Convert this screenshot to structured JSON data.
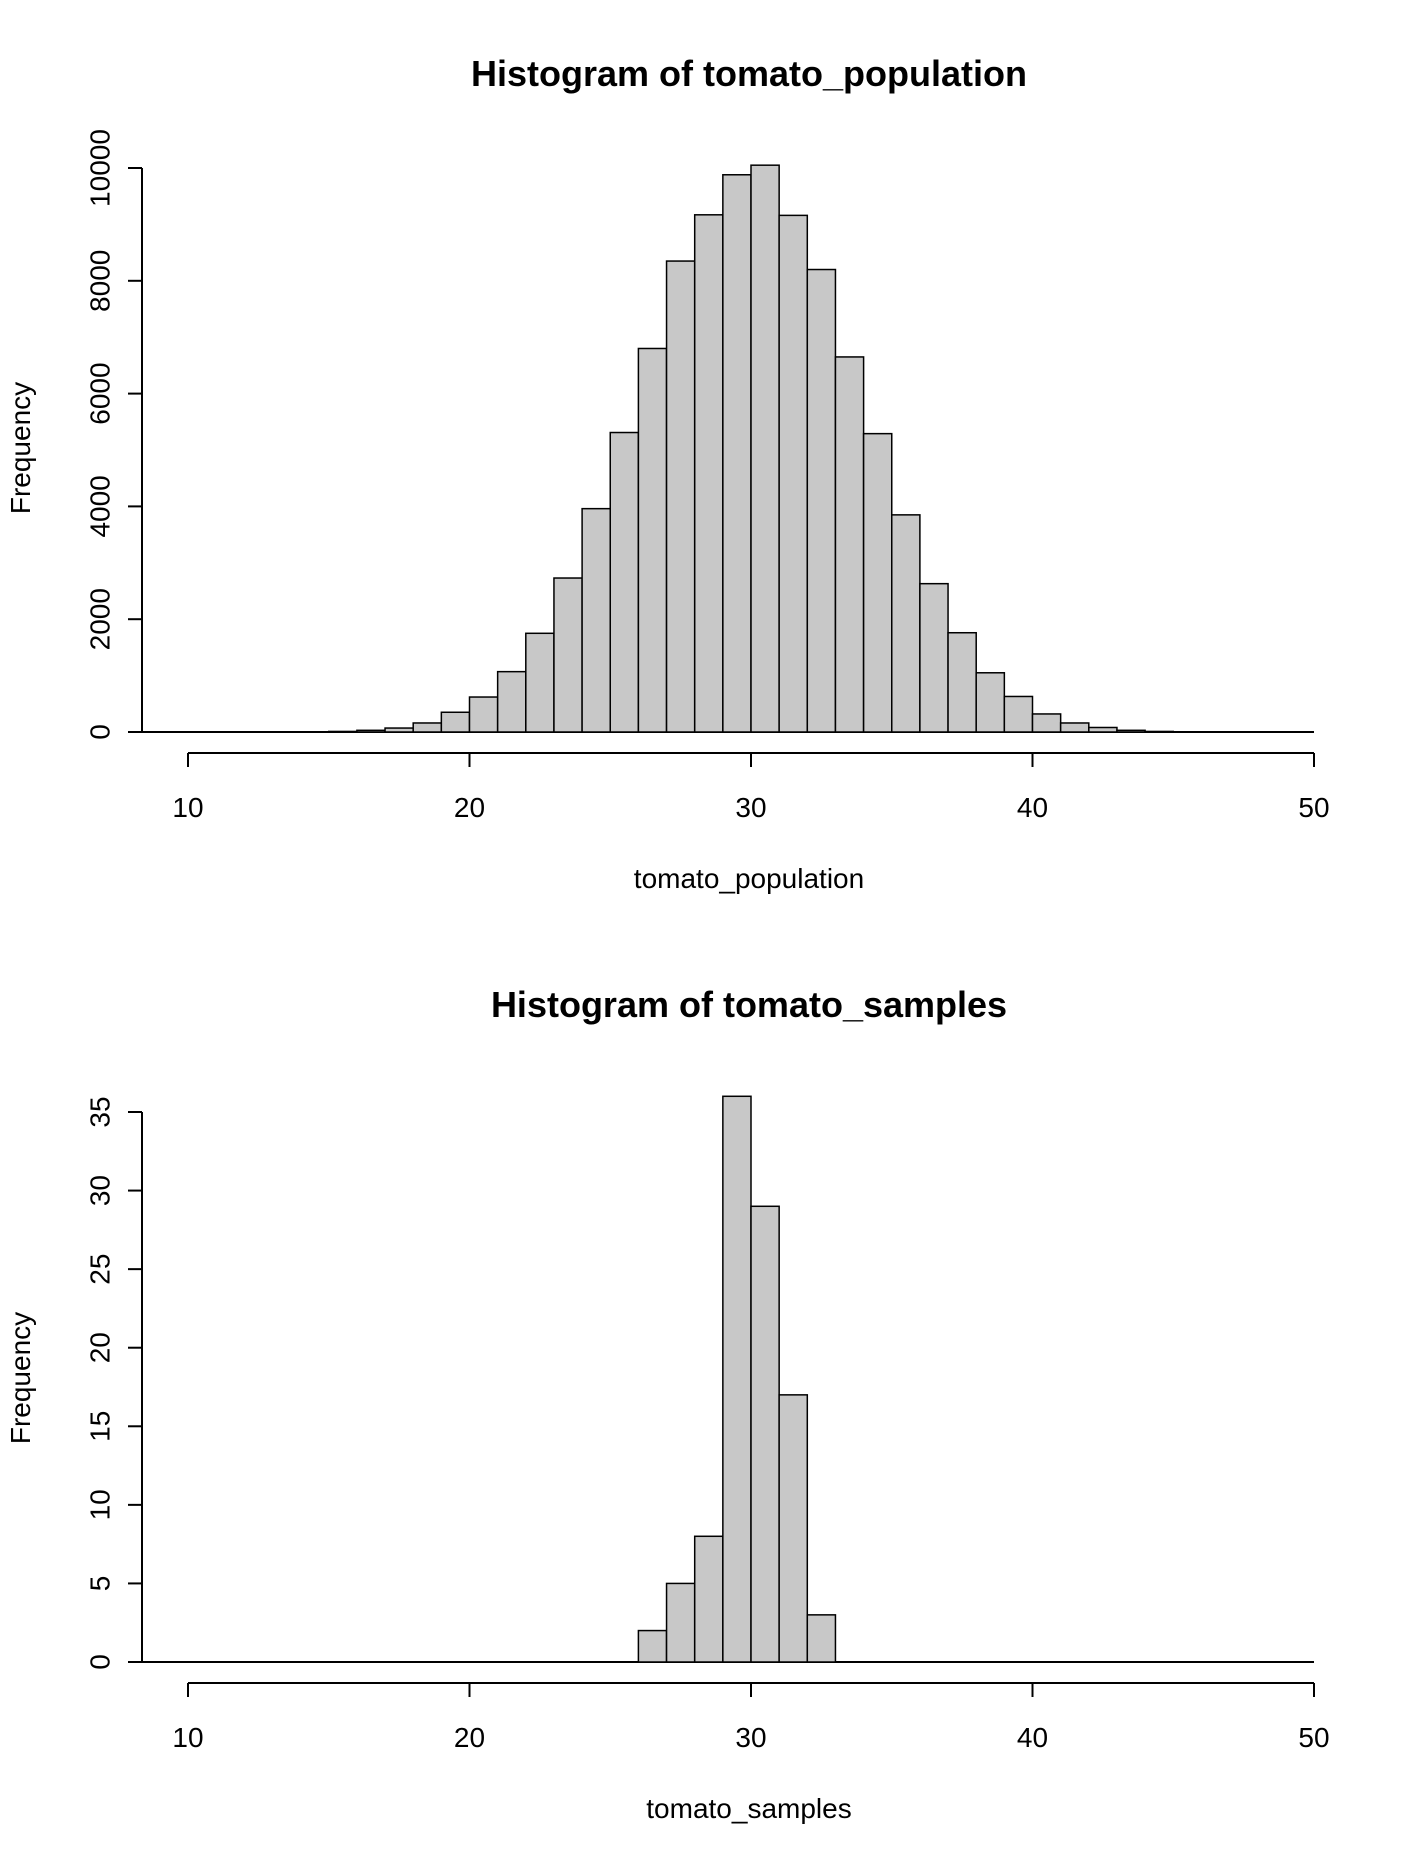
{
  "chart_data": [
    {
      "type": "bar",
      "title": "Histogram of tomato_population",
      "xlabel": "tomato_population",
      "ylabel": "Frequency",
      "xlim": [
        10,
        50
      ],
      "ylim": [
        0,
        10000
      ],
      "x_ticks": [
        10,
        20,
        30,
        40,
        50
      ],
      "y_ticks": [
        0,
        2000,
        4000,
        6000,
        8000,
        10000
      ],
      "bin_width": 1,
      "bins": [
        {
          "start": 15,
          "value": 10
        },
        {
          "start": 16,
          "value": 30
        },
        {
          "start": 17,
          "value": 70
        },
        {
          "start": 18,
          "value": 160
        },
        {
          "start": 19,
          "value": 350
        },
        {
          "start": 20,
          "value": 620
        },
        {
          "start": 21,
          "value": 1070
        },
        {
          "start": 22,
          "value": 1750
        },
        {
          "start": 23,
          "value": 2730
        },
        {
          "start": 24,
          "value": 3960
        },
        {
          "start": 25,
          "value": 5310
        },
        {
          "start": 26,
          "value": 6800
        },
        {
          "start": 27,
          "value": 8350
        },
        {
          "start": 28,
          "value": 9170
        },
        {
          "start": 29,
          "value": 9880
        },
        {
          "start": 30,
          "value": 10050
        },
        {
          "start": 31,
          "value": 9160
        },
        {
          "start": 32,
          "value": 8200
        },
        {
          "start": 33,
          "value": 6650
        },
        {
          "start": 34,
          "value": 5290
        },
        {
          "start": 35,
          "value": 3850
        },
        {
          "start": 36,
          "value": 2630
        },
        {
          "start": 37,
          "value": 1760
        },
        {
          "start": 38,
          "value": 1050
        },
        {
          "start": 39,
          "value": 630
        },
        {
          "start": 40,
          "value": 320
        },
        {
          "start": 41,
          "value": 160
        },
        {
          "start": 42,
          "value": 80
        },
        {
          "start": 43,
          "value": 30
        },
        {
          "start": 44,
          "value": 10
        }
      ]
    },
    {
      "type": "bar",
      "title": "Histogram of tomato_samples",
      "xlabel": "tomato_samples",
      "ylabel": "Frequency",
      "xlim": [
        10,
        50
      ],
      "ylim": [
        0,
        35
      ],
      "x_ticks": [
        10,
        20,
        30,
        40,
        50
      ],
      "y_ticks": [
        0,
        5,
        10,
        15,
        20,
        25,
        30,
        35
      ],
      "bin_width": 1,
      "bins": [
        {
          "start": 26,
          "value": 2
        },
        {
          "start": 27,
          "value": 5
        },
        {
          "start": 28,
          "value": 8
        },
        {
          "start": 29,
          "value": 36
        },
        {
          "start": 30,
          "value": 29
        },
        {
          "start": 31,
          "value": 17
        },
        {
          "start": 32,
          "value": 3
        }
      ]
    }
  ]
}
